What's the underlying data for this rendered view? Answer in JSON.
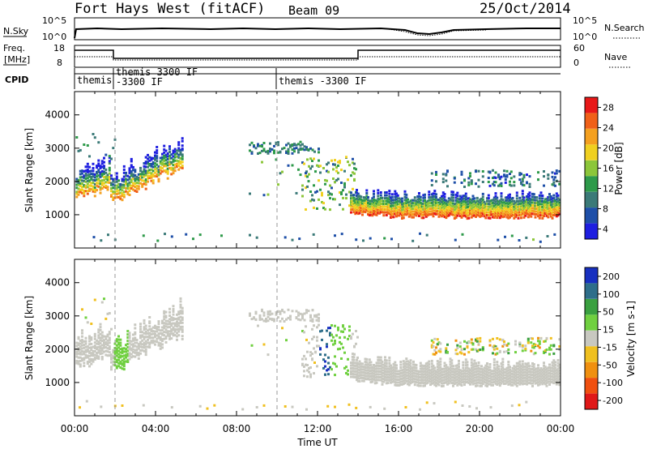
{
  "header": {
    "title": "Fort Hays West (fitACF)",
    "beam": "Beam 09",
    "date": "25/Oct/2014"
  },
  "top_panels": {
    "nsky": {
      "label": "N.Sky",
      "tick_top": "10^5",
      "tick_bottom": "10^0"
    },
    "nsearch": {
      "label": "N.Search",
      "tick_top": "10^5",
      "tick_bottom": "10^0"
    },
    "freq": {
      "label_line1": "Freq.",
      "label_line2": "[MHz]",
      "tick_top": "18",
      "tick_bottom": "8"
    },
    "nave": {
      "label": "Nave",
      "tick_top": "60",
      "tick_bottom": "0"
    },
    "cpid": {
      "label": "CPID",
      "segments": [
        {
          "text": "themis",
          "text2": ""
        },
        {
          "text": "themis 3300 IF",
          "text2": "-3300 IF"
        },
        {
          "text": "themis -3300 IF",
          "text2": ""
        }
      ]
    }
  },
  "x_axis": {
    "label": "Time UT",
    "ticks": [
      "00:00",
      "04:00",
      "08:00",
      "12:00",
      "16:00",
      "20:00",
      "00:00"
    ]
  },
  "power_colorbar": {
    "label": "Power [dB]",
    "ticks": [
      "28",
      "24",
      "20",
      "16",
      "12",
      "8",
      "4"
    ],
    "colors": [
      "#1e1ee0",
      "#1e4fa8",
      "#3b7a78",
      "#2e9a4a",
      "#8cc63a",
      "#f0d020",
      "#f4a020",
      "#f06018",
      "#e81818"
    ]
  },
  "velocity_colorbar": {
    "label": "Velocity [m s-1]",
    "ticks": [
      "200",
      "100",
      "50",
      "15",
      "-15",
      "-50",
      "-100",
      "-200"
    ],
    "colors": [
      "#1830c0",
      "#2e6e8a",
      "#3aa040",
      "#70d040",
      "#c8c8c0",
      "#f0c020",
      "#f09010",
      "#f05010",
      "#e01818"
    ]
  },
  "chart_data": [
    {
      "type": "heatmap",
      "title": "Power",
      "xlabel": "Time UT",
      "ylabel": "Slant Range [km]",
      "xlim": [
        0,
        24
      ],
      "ylim": [
        0,
        4700
      ],
      "y_ticks": [
        1000,
        2000,
        3000,
        4000
      ],
      "colorbar": "Power [dB]",
      "colorbar_range": [
        0,
        30
      ],
      "vertical_markers": [
        2,
        10
      ]
    },
    {
      "type": "heatmap",
      "title": "Velocity",
      "xlabel": "Time UT",
      "ylabel": "Slant Range [km]",
      "xlim": [
        0,
        24
      ],
      "ylim": [
        0,
        4700
      ],
      "y_ticks": [
        1000,
        2000,
        3000,
        4000
      ],
      "colorbar": "Velocity [m s-1]",
      "colorbar_range": [
        -250,
        250
      ],
      "vertical_markers": [
        2,
        10
      ]
    }
  ]
}
